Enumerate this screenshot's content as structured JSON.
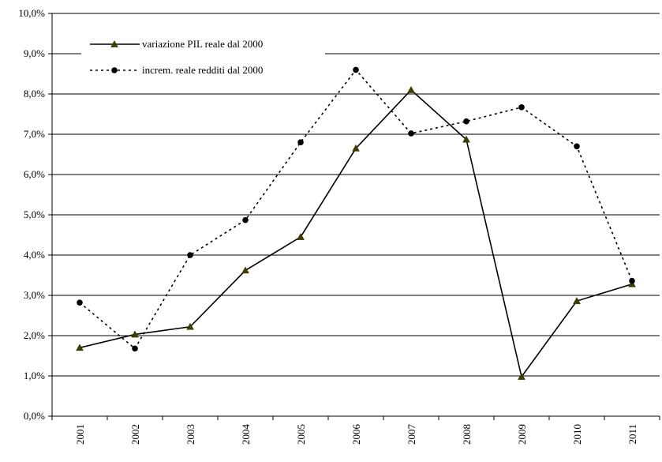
{
  "chart_data": {
    "type": "line",
    "title": "",
    "xlabel": "",
    "ylabel": "",
    "categories": [
      "2001",
      "2002",
      "2003",
      "2004",
      "2005",
      "2006",
      "2007",
      "2008",
      "2009",
      "2010",
      "2011"
    ],
    "ylim": [
      0,
      10
    ],
    "y_ticks": [
      "0,0%",
      "1,0%",
      "2,0%",
      "3,0%",
      "4,0%",
      "5,0%",
      "6,0%",
      "7,0%",
      "8,0%",
      "9,0%",
      "10,0%"
    ],
    "grid": true,
    "legend_position": "top-left",
    "series": [
      {
        "name": "variazione PIL reale dal 2000",
        "style": "solid",
        "marker": "triangle",
        "color": "#000000",
        "marker_color": "#3d3d00",
        "values": [
          1.7,
          2.03,
          2.22,
          3.62,
          4.45,
          6.65,
          8.1,
          6.87,
          0.98,
          2.86,
          3.28
        ]
      },
      {
        "name": "increm. reale redditi dal 2000",
        "style": "dashed",
        "marker": "circle",
        "color": "#000000",
        "marker_color": "#000000",
        "values": [
          2.82,
          1.68,
          4.0,
          4.87,
          6.8,
          8.6,
          7.02,
          7.32,
          7.67,
          6.7,
          3.36
        ]
      }
    ]
  }
}
